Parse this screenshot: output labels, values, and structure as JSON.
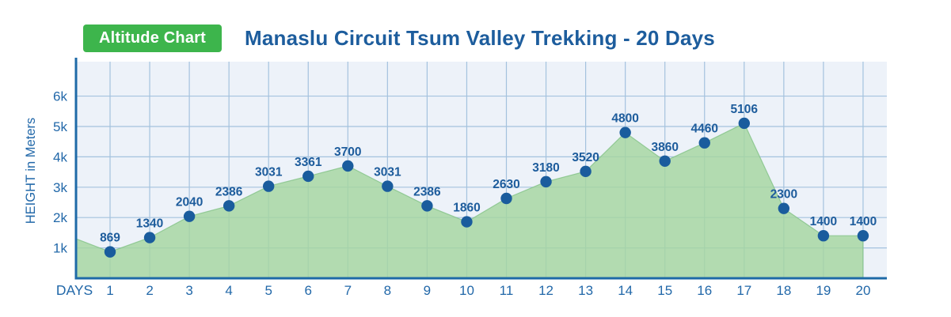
{
  "header": {
    "badge_label": "Altitude Chart",
    "title": "Manaslu Circuit Tsum Valley Trekking - 20 Days"
  },
  "chart_data": {
    "type": "area",
    "title": "Manaslu Circuit Tsum Valley Trekking - 20 Days",
    "xlabel": "DAYS",
    "ylabel": "HEIGHT in Meters",
    "x": [
      1,
      2,
      3,
      4,
      5,
      6,
      7,
      8,
      9,
      10,
      11,
      12,
      13,
      14,
      15,
      16,
      17,
      18,
      19,
      20
    ],
    "values": [
      869,
      1340,
      2040,
      2386,
      3031,
      3361,
      3700,
      3031,
      2386,
      1860,
      2630,
      3180,
      3520,
      4800,
      3860,
      4460,
      5106,
      2300,
      1400,
      1400
    ],
    "point_labels": [
      "869",
      "1340",
      "2040",
      "2386",
      "3031",
      "3361",
      "3700",
      "3031",
      "2386",
      "1860",
      "2630",
      "3180",
      "3520",
      "4800",
      "3860",
      "4460",
      "5106",
      "2300",
      "1400",
      "1400"
    ],
    "area_start_value": 1300,
    "ylim": [
      0,
      7135
    ],
    "yticks": [
      {
        "value": 1000,
        "label": "1k"
      },
      {
        "value": 2000,
        "label": "2k"
      },
      {
        "value": 3000,
        "label": "3k"
      },
      {
        "value": 4000,
        "label": "4k"
      },
      {
        "value": 5000,
        "label": "5k"
      },
      {
        "value": 6000,
        "label": "6k"
      }
    ],
    "grid": true,
    "legend": false,
    "colors": {
      "badge_bg": "#3db54c",
      "badge_text": "#ffffff",
      "title_text": "#1d5d9d",
      "plot_bg": "#edf2f9",
      "grid_line": "#a4c2de",
      "axis_line": "#1e6aa7",
      "area_fill": "#a5d6a0",
      "area_edge": "#82c286",
      "point_fill": "#1a5c9d",
      "value_label": "#1d5c9c",
      "tick_label": "#2268a9"
    }
  }
}
